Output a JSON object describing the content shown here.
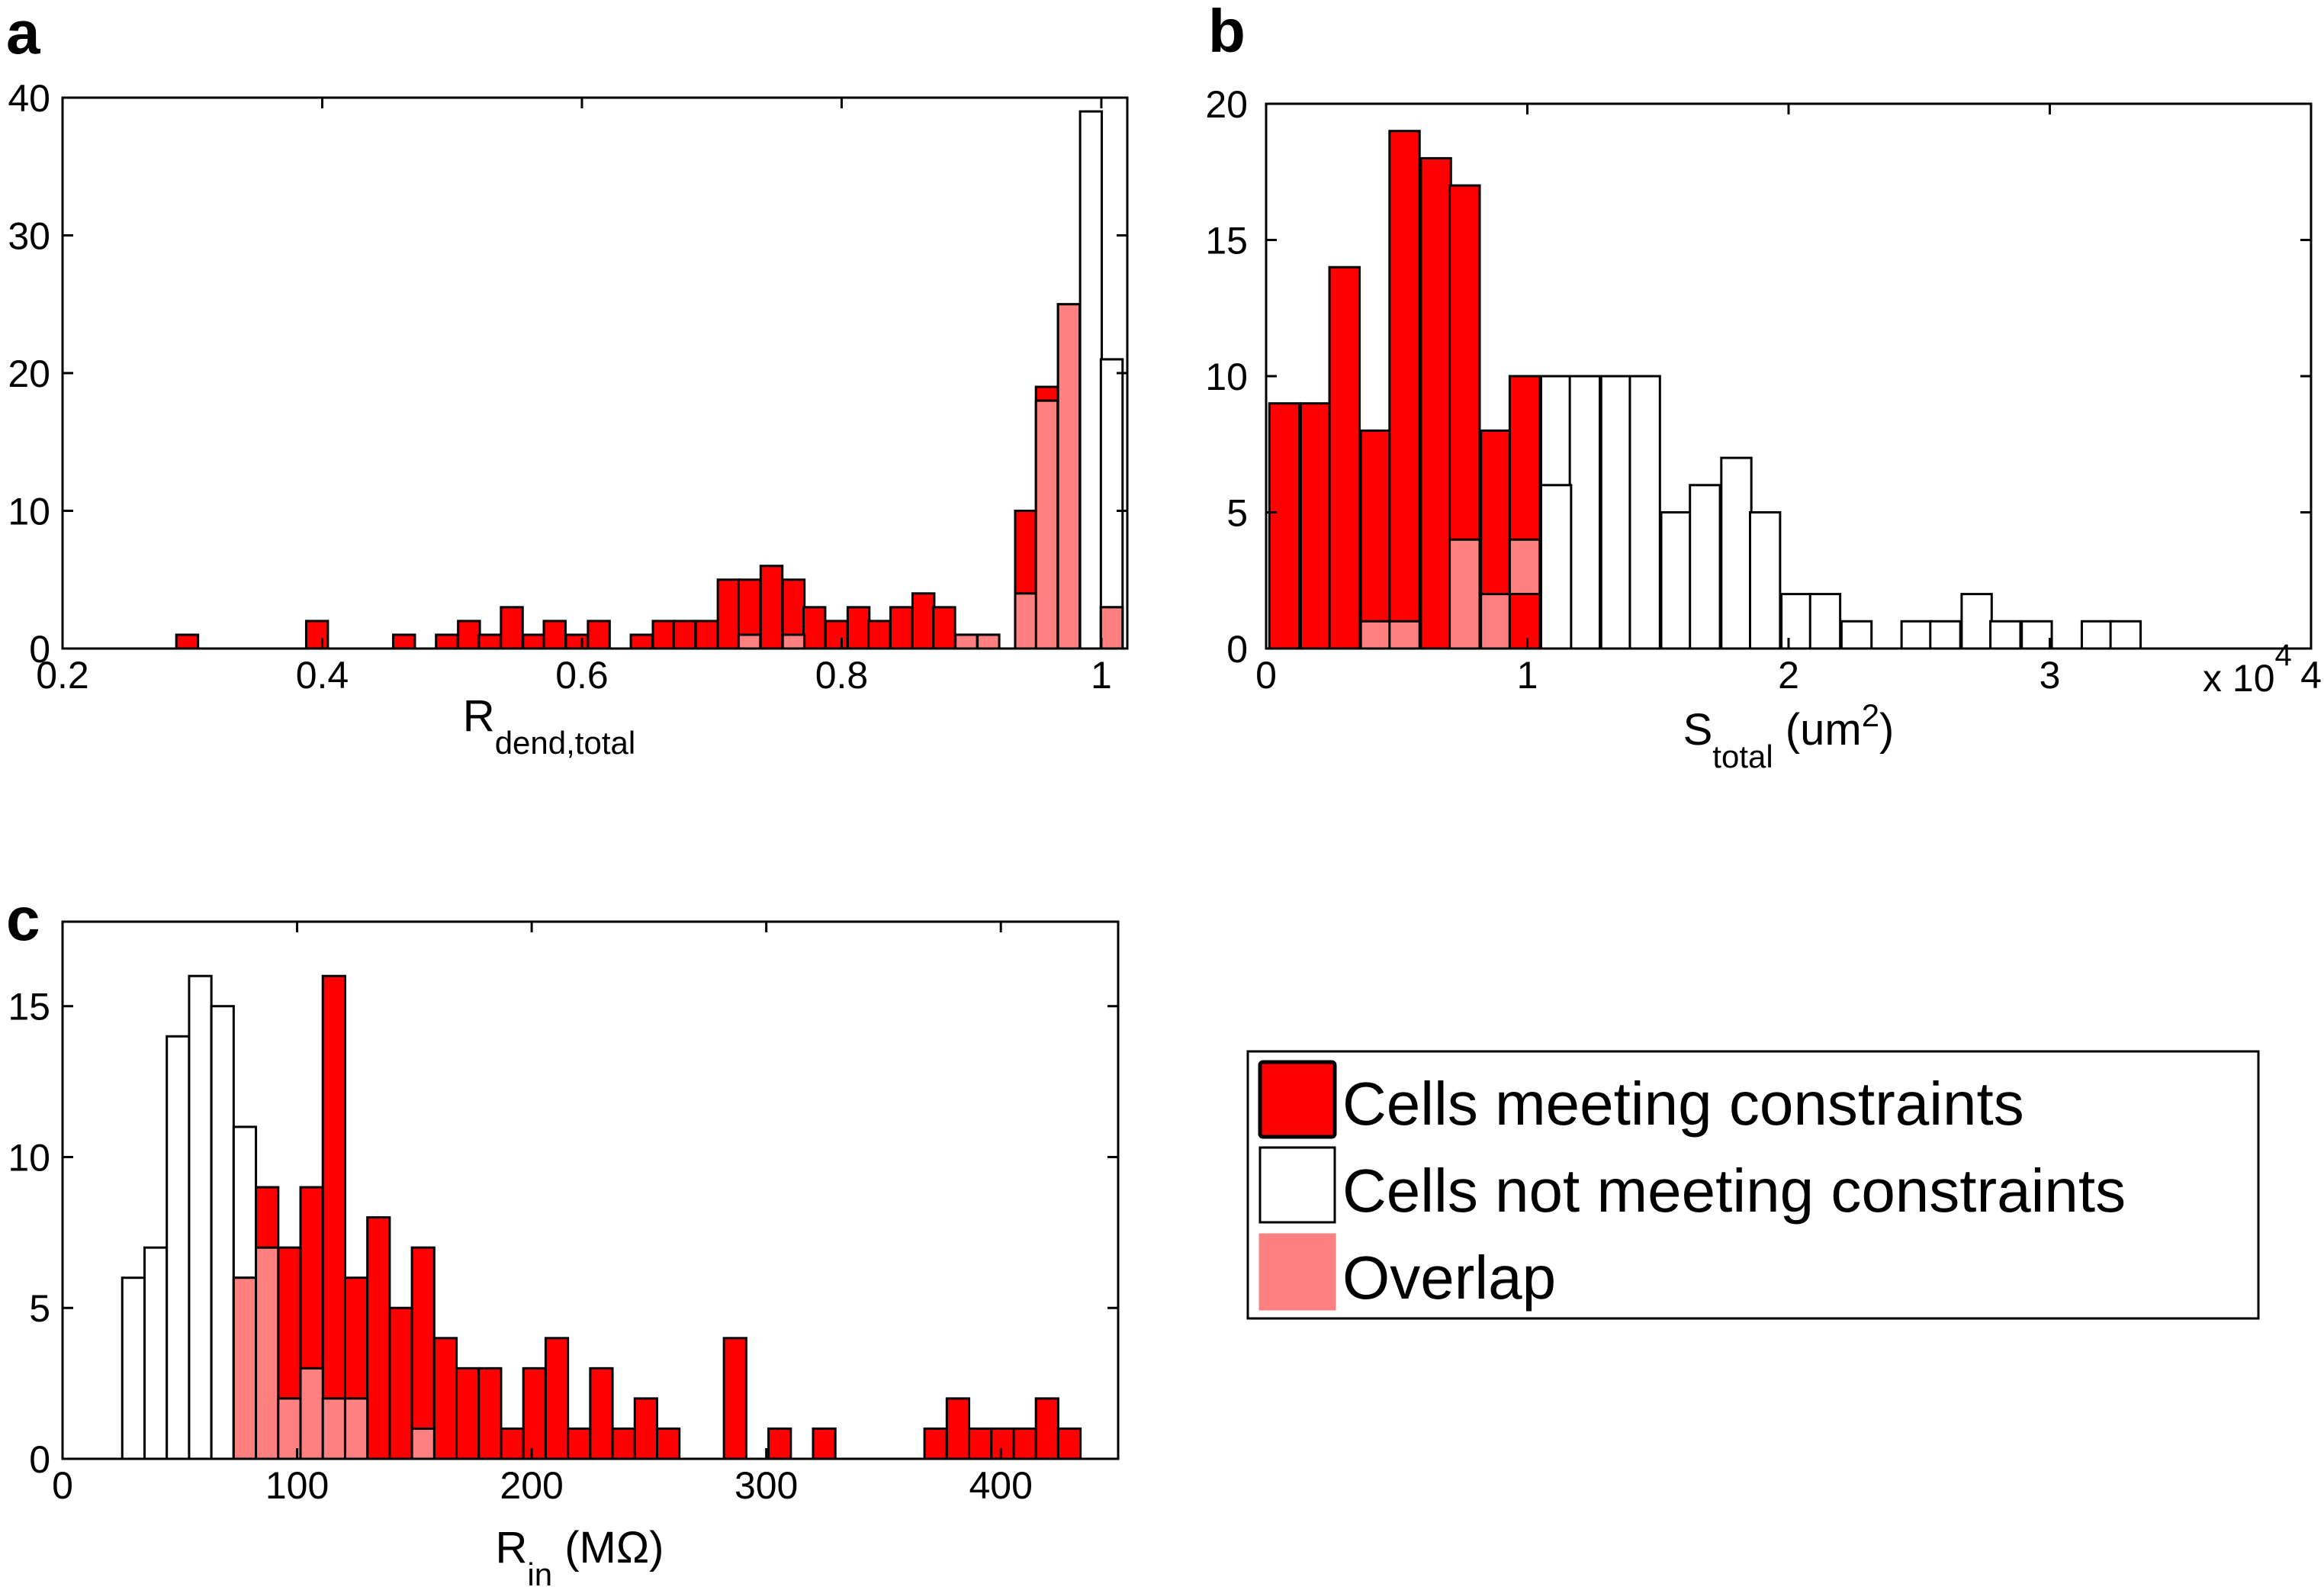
{
  "colors": {
    "meeting": "#ff0000",
    "not_meeting": "#ffffff",
    "overlap": "#ff8080",
    "edge": "#000000"
  },
  "legend": {
    "items": [
      {
        "key": "meeting",
        "label": "Cells meeting constraints"
      },
      {
        "key": "not_meeting",
        "label": "Cells not meeting constraints"
      },
      {
        "key": "overlap",
        "label": "Overlap"
      }
    ]
  },
  "chart_data": [
    {
      "panel": "a",
      "type": "bar",
      "xlabel": "R",
      "xlabel_sub": "dend,total",
      "xlim": [
        0.2,
        1.02
      ],
      "ylim": [
        0,
        40
      ],
      "xticks": [
        0.2,
        0.4,
        0.6,
        0.8,
        1
      ],
      "xtick_labels": [
        "0.2",
        "0.4",
        "0.6",
        "0.8",
        "1"
      ],
      "yticks": [
        0,
        10,
        20,
        30,
        40
      ],
      "ytick_labels": [
        "0",
        "10",
        "20",
        "30",
        "40"
      ],
      "bin_width": 0.0167,
      "series": [
        {
          "name": "Cells not meeting constraints",
          "key": "not_meeting",
          "x": [
            0.992,
            1.008
          ],
          "values": [
            39,
            21
          ]
        },
        {
          "name": "Cells meeting constraints",
          "key": "meeting",
          "x": [
            0.296,
            0.396,
            0.463,
            0.496,
            0.513,
            0.529,
            0.546,
            0.563,
            0.579,
            0.596,
            0.613,
            0.646,
            0.663,
            0.679,
            0.696,
            0.713,
            0.729,
            0.746,
            0.763,
            0.779,
            0.796,
            0.813,
            0.829,
            0.846,
            0.863,
            0.879,
            0.896,
            0.913,
            0.942,
            0.958,
            0.975,
            0.992,
            1.008
          ],
          "values": [
            1,
            2,
            1,
            1,
            2,
            1,
            3,
            1,
            2,
            1,
            2,
            1,
            2,
            2,
            2,
            5,
            5,
            6,
            5,
            3,
            2,
            3,
            2,
            3,
            4,
            3,
            1,
            1,
            10,
            19,
            25,
            0,
            3
          ]
        },
        {
          "name": "Overlap",
          "key": "overlap",
          "x": [
            0.729,
            0.763,
            0.896,
            0.913,
            0.942,
            0.958,
            0.975,
            0.992,
            1.008
          ],
          "values": [
            1,
            1,
            1,
            1,
            4,
            18,
            25,
            0,
            3
          ]
        }
      ]
    },
    {
      "panel": "b",
      "type": "bar",
      "xlabel": "S",
      "xlabel_sub": "total",
      "xlabel_suffix": " (um",
      "xlabel_sup": "2",
      "xlabel_end": ")",
      "multiplier": "x 10",
      "multiplier_exp": "4",
      "xlim": [
        0,
        4
      ],
      "ylim": [
        0,
        20
      ],
      "xticks": [
        0,
        1,
        2,
        3,
        4
      ],
      "xtick_labels": [
        "0",
        "1",
        "2",
        "3",
        "4"
      ],
      "yticks": [
        0,
        5,
        10,
        15,
        20
      ],
      "ytick_labels": [
        "0",
        "5",
        "10",
        "15",
        "20"
      ],
      "bin_width": 0.115,
      "series": [
        {
          "name": "Cells not meeting constraints",
          "key": "not_meeting",
          "x": [
            1.11,
            1.22,
            1.34,
            1.45,
            1.57,
            1.68,
            1.8,
            1.91,
            2.03,
            2.14,
            2.26,
            2.49,
            2.6,
            2.72,
            2.83,
            2.95,
            3.18,
            3.29
          ],
          "values": [
            10,
            10,
            10,
            10,
            5,
            6,
            7,
            5,
            2,
            2,
            1,
            1,
            1,
            2,
            1,
            1,
            1,
            1
          ]
        },
        {
          "name": "Cells meeting constraints",
          "key": "meeting",
          "x": [
            0.07,
            0.19,
            0.3,
            0.42,
            0.53,
            0.65,
            0.76,
            0.88,
            0.99
          ],
          "values": [
            9,
            9,
            14,
            8,
            19,
            18,
            17,
            8,
            10
          ]
        },
        {
          "name": "Cells not meeting constraints",
          "key": "not_meeting_front",
          "x": [
            1.11
          ],
          "values": [
            6
          ]
        },
        {
          "name": "Overlap",
          "key": "overlap",
          "x": [
            0.42,
            0.53,
            0.76,
            0.88,
            0.99
          ],
          "values": [
            1,
            1,
            4,
            2,
            4
          ]
        },
        {
          "name": "Cells meeting constraints",
          "key": "meeting_front",
          "x": [
            0.99
          ],
          "values": [
            2
          ]
        }
      ]
    },
    {
      "panel": "c",
      "type": "bar",
      "xlabel": "R",
      "xlabel_sub": "in",
      "xlabel_suffix": " (MΩ)",
      "xlim": [
        0,
        450
      ],
      "ylim": [
        0,
        17.8
      ],
      "xticks": [
        0,
        100,
        200,
        300,
        400
      ],
      "xtick_labels": [
        "0",
        "100",
        "200",
        "300",
        "400"
      ],
      "yticks": [
        0,
        5,
        10,
        15
      ],
      "ytick_labels": [
        "0",
        "5",
        "10",
        "15"
      ],
      "bin_width": 9.5,
      "series": [
        {
          "name": "Cells not meeting constraints",
          "key": "not_meeting",
          "x": [
            30.2,
            39.7,
            49.2,
            58.7,
            68.2,
            77.7
          ],
          "values": [
            6,
            7,
            14,
            16,
            15,
            11
          ]
        },
        {
          "name": "Cells meeting constraints",
          "key": "meeting",
          "x": [
            77.7,
            87.2,
            96.7,
            106.2,
            115.7,
            125.2,
            134.7,
            144.2,
            153.7,
            163.2,
            172.7,
            182.2,
            191.7,
            201.2,
            210.7,
            220.2,
            229.7,
            239.2,
            248.7,
            258.2,
            286.7,
            305.7,
            324.7,
            372.2,
            381.7,
            391.2,
            400.7,
            410.2,
            419.7,
            429.2
          ],
          "values": [
            6,
            9,
            7,
            9,
            16,
            6,
            8,
            5,
            7,
            4,
            3,
            3,
            1,
            3,
            4,
            1,
            3,
            1,
            2,
            1,
            4,
            1,
            1,
            1,
            2,
            1,
            1,
            1,
            2,
            1
          ]
        },
        {
          "name": "Overlap",
          "key": "overlap",
          "x": [
            77.7,
            87.2,
            96.7,
            106.2,
            115.7,
            125.2,
            153.7
          ],
          "values": [
            6,
            7,
            2,
            3,
            2,
            2,
            1
          ]
        }
      ]
    }
  ]
}
